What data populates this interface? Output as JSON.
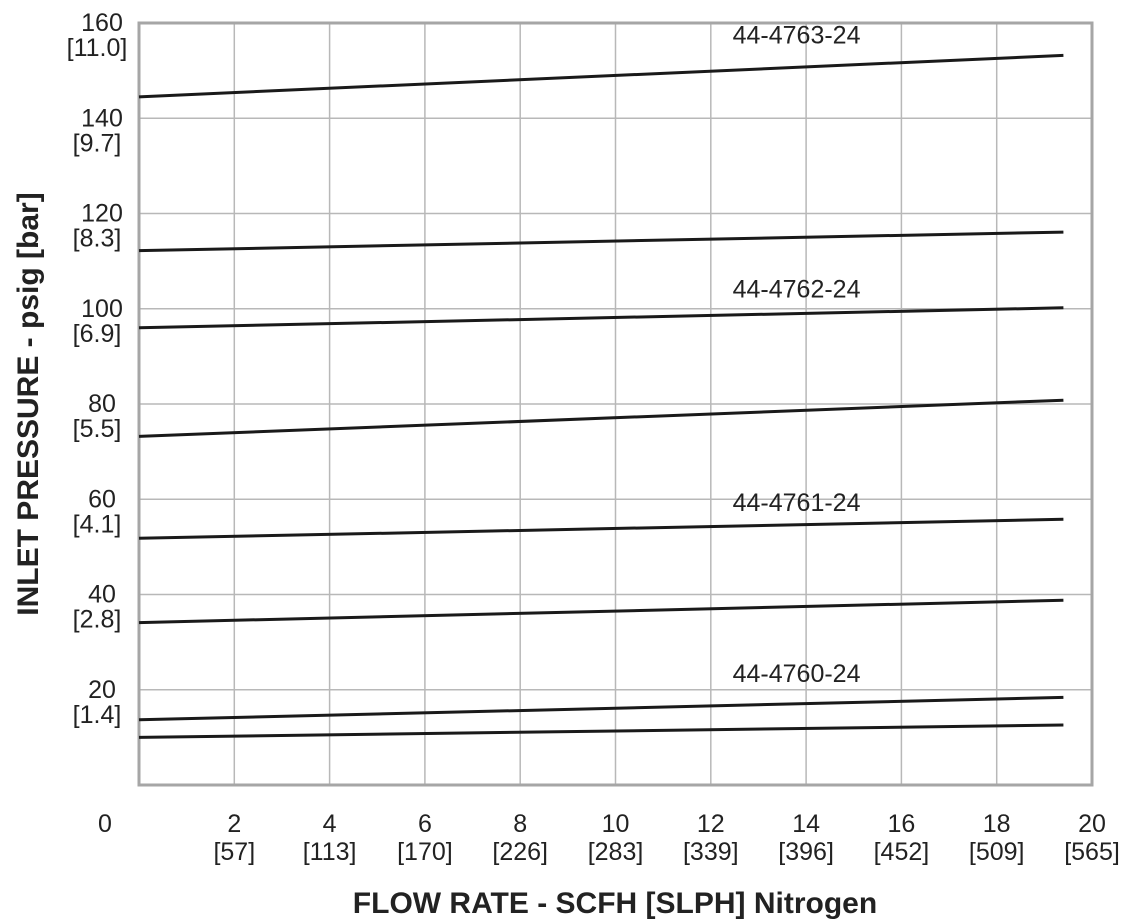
{
  "chart_data": {
    "type": "line",
    "title": "",
    "xlabel": "FLOW RATE - SCFH [SLPH] Nitrogen",
    "ylabel": "INLET PRESSURE - psig [bar]",
    "xlim": [
      0,
      20
    ],
    "ylim": [
      0,
      160
    ],
    "grid": true,
    "x_ticks": [
      {
        "value": 0,
        "label": "0",
        "sub": ""
      },
      {
        "value": 2,
        "label": "2",
        "sub": "[57]"
      },
      {
        "value": 4,
        "label": "4",
        "sub": "[113]"
      },
      {
        "value": 6,
        "label": "6",
        "sub": "[170]"
      },
      {
        "value": 8,
        "label": "8",
        "sub": "[226]"
      },
      {
        "value": 10,
        "label": "10",
        "sub": "[283]"
      },
      {
        "value": 12,
        "label": "12",
        "sub": "[339]"
      },
      {
        "value": 14,
        "label": "14",
        "sub": "[396]"
      },
      {
        "value": 16,
        "label": "16",
        "sub": "[452]"
      },
      {
        "value": 18,
        "label": "18",
        "sub": "[509]"
      },
      {
        "value": 20,
        "label": "20",
        "sub": "[565]"
      }
    ],
    "y_ticks": [
      {
        "value": 20,
        "label": "20",
        "sub": "[1.4]"
      },
      {
        "value": 40,
        "label": "40",
        "sub": "[2.8]"
      },
      {
        "value": 60,
        "label": "60",
        "sub": "[4.1]"
      },
      {
        "value": 80,
        "label": "80",
        "sub": "[5.5]"
      },
      {
        "value": 100,
        "label": "100",
        "sub": "[6.9]"
      },
      {
        "value": 120,
        "label": "120",
        "sub": "[8.3]"
      },
      {
        "value": 140,
        "label": "140",
        "sub": "[9.7]"
      },
      {
        "value": 160,
        "label": "160",
        "sub": "[11.0]"
      }
    ],
    "series": [
      {
        "x": [
          0,
          19.4
        ],
        "y": [
          144.5,
          153.2
        ]
      },
      {
        "x": [
          0,
          19.4
        ],
        "y": [
          112.2,
          116.1
        ]
      },
      {
        "x": [
          0,
          19.4
        ],
        "y": [
          96.0,
          100.2
        ]
      },
      {
        "x": [
          0,
          19.4
        ],
        "y": [
          73.2,
          80.8
        ]
      },
      {
        "x": [
          0,
          19.4
        ],
        "y": [
          51.8,
          55.8
        ]
      },
      {
        "x": [
          0,
          19.4
        ],
        "y": [
          34.1,
          38.8
        ]
      },
      {
        "x": [
          0,
          19.4
        ],
        "y": [
          13.7,
          18.4
        ]
      },
      {
        "x": [
          0,
          19.4
        ],
        "y": [
          10.0,
          12.6
        ]
      }
    ],
    "annotations": [
      {
        "text": "44-4763-24",
        "x": 13.8,
        "y": 155.7
      },
      {
        "text": "44-4762-24",
        "x": 13.8,
        "y": 102.4
      },
      {
        "text": "44-4761-24",
        "x": 13.8,
        "y": 57.5
      },
      {
        "text": "44-4760-24",
        "x": 13.8,
        "y": 21.6
      }
    ],
    "colors": {
      "line": "#1a1a1a",
      "grid": "#b8b8b8",
      "frame": "#a6a6a6",
      "text": "#222222"
    }
  }
}
